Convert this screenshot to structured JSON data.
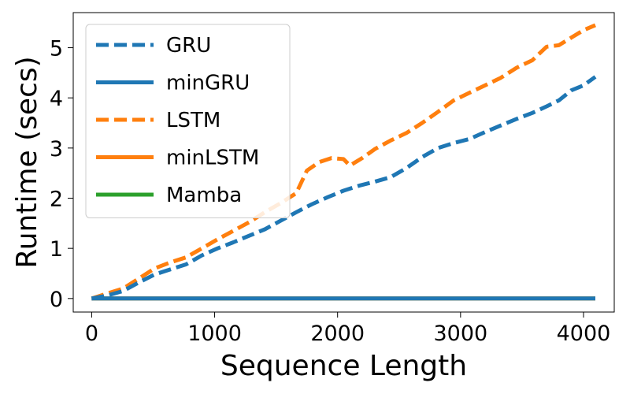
{
  "chart_data": {
    "type": "line",
    "title": "",
    "xlabel": "Sequence Length",
    "ylabel": "Runtime (secs)",
    "xlim": [
      -150,
      4250
    ],
    "ylim": [
      -0.27,
      5.7
    ],
    "xticks": [
      0,
      1000,
      2000,
      3000,
      4000
    ],
    "yticks": [
      0,
      1,
      2,
      3,
      4,
      5
    ],
    "legend_position": "top-left",
    "series": [
      {
        "name": "Mamba",
        "color": "#2ca02c",
        "style": "solid",
        "x": [
          0,
          4096
        ],
        "y": [
          0.0,
          0.0
        ]
      },
      {
        "name": "minLSTM",
        "color": "#ff7f0e",
        "style": "solid",
        "x": [
          0,
          4096
        ],
        "y": [
          0.0,
          0.0
        ]
      },
      {
        "name": "LSTM",
        "color": "#ff7f0e",
        "style": "dashed",
        "x": [
          0,
          128,
          256,
          384,
          512,
          640,
          768,
          896,
          1024,
          1152,
          1280,
          1408,
          1536,
          1664,
          1750,
          1850,
          1950,
          2048,
          2100,
          2200,
          2304,
          2432,
          2560,
          2688,
          2816,
          2944,
          3072,
          3200,
          3328,
          3456,
          3584,
          3700,
          3800,
          3900,
          4000,
          4096
        ],
        "y": [
          0.0,
          0.1,
          0.2,
          0.4,
          0.6,
          0.72,
          0.82,
          1.0,
          1.18,
          1.35,
          1.52,
          1.72,
          1.9,
          2.1,
          2.55,
          2.72,
          2.8,
          2.78,
          2.65,
          2.8,
          2.98,
          3.15,
          3.3,
          3.5,
          3.72,
          3.95,
          4.1,
          4.25,
          4.4,
          4.6,
          4.75,
          5.02,
          5.05,
          5.2,
          5.35,
          5.45
        ]
      },
      {
        "name": "GRU",
        "color": "#1f77b4",
        "style": "dashed",
        "x": [
          0,
          128,
          256,
          384,
          512,
          640,
          768,
          896,
          1024,
          1152,
          1280,
          1408,
          1536,
          1664,
          1792,
          1920,
          2048,
          2176,
          2304,
          2432,
          2560,
          2688,
          2816,
          2944,
          3072,
          3200,
          3328,
          3456,
          3584,
          3700,
          3800,
          3900,
          4000,
          4096
        ],
        "y": [
          0.0,
          0.06,
          0.15,
          0.32,
          0.48,
          0.58,
          0.68,
          0.86,
          1.0,
          1.12,
          1.25,
          1.38,
          1.55,
          1.72,
          1.88,
          2.02,
          2.15,
          2.25,
          2.33,
          2.42,
          2.6,
          2.82,
          3.0,
          3.1,
          3.18,
          3.32,
          3.45,
          3.58,
          3.7,
          3.83,
          3.95,
          4.15,
          4.25,
          4.42
        ]
      },
      {
        "name": "minGRU",
        "color": "#1f77b4",
        "style": "solid",
        "x": [
          0,
          4096
        ],
        "y": [
          0.0,
          0.0
        ]
      }
    ],
    "legend": [
      {
        "name": "GRU",
        "color": "#1f77b4",
        "style": "dashed"
      },
      {
        "name": "minGRU",
        "color": "#1f77b4",
        "style": "solid"
      },
      {
        "name": "LSTM",
        "color": "#ff7f0e",
        "style": "dashed"
      },
      {
        "name": "minLSTM",
        "color": "#ff7f0e",
        "style": "solid"
      },
      {
        "name": "Mamba",
        "color": "#2ca02c",
        "style": "solid"
      }
    ]
  }
}
